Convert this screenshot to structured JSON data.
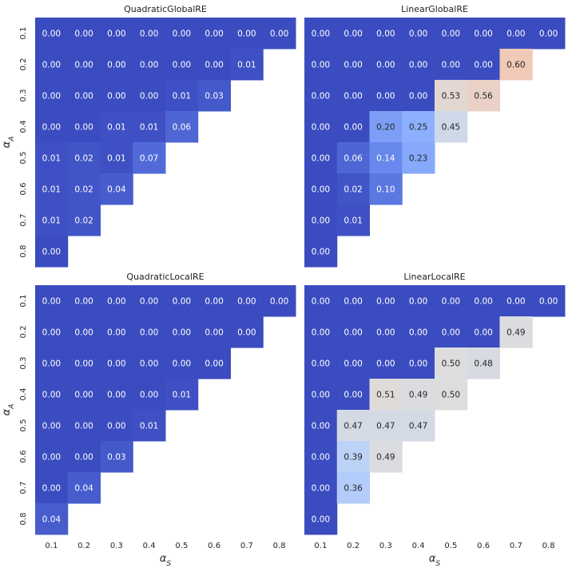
{
  "chart_data": [
    {
      "type": "heatmap",
      "title": "QuadraticGlobalRE",
      "x_categories": [
        "0.1",
        "0.2",
        "0.3",
        "0.4",
        "0.5",
        "0.6",
        "0.7",
        "0.8"
      ],
      "y_categories": [
        "0.1",
        "0.2",
        "0.3",
        "0.4",
        "0.5",
        "0.6",
        "0.7",
        "0.8"
      ],
      "xlabel": "",
      "ylabel": "α_A",
      "colormap": "coolwarm",
      "vmin": 0,
      "vmax": 1,
      "values": [
        [
          0.0,
          0.0,
          0.0,
          0.0,
          0.0,
          0.0,
          0.0,
          0.0
        ],
        [
          0.0,
          0.0,
          0.0,
          0.0,
          0.0,
          0.0,
          0.01,
          null
        ],
        [
          0.0,
          0.0,
          0.0,
          0.0,
          0.01,
          0.03,
          null,
          null
        ],
        [
          0.0,
          0.0,
          0.01,
          0.01,
          0.06,
          null,
          null,
          null
        ],
        [
          0.01,
          0.02,
          0.01,
          0.07,
          null,
          null,
          null,
          null
        ],
        [
          0.01,
          0.02,
          0.04,
          null,
          null,
          null,
          null,
          null
        ],
        [
          0.01,
          0.02,
          null,
          null,
          null,
          null,
          null,
          null
        ],
        [
          0.0,
          null,
          null,
          null,
          null,
          null,
          null,
          null
        ]
      ]
    },
    {
      "type": "heatmap",
      "title": "LinearGlobalRE",
      "x_categories": [
        "0.1",
        "0.2",
        "0.3",
        "0.4",
        "0.5",
        "0.6",
        "0.7",
        "0.8"
      ],
      "y_categories": [
        "0.1",
        "0.2",
        "0.3",
        "0.4",
        "0.5",
        "0.6",
        "0.7",
        "0.8"
      ],
      "xlabel": "",
      "ylabel": "",
      "colormap": "coolwarm",
      "vmin": 0,
      "vmax": 1,
      "values": [
        [
          0.0,
          0.0,
          0.0,
          0.0,
          0.0,
          0.0,
          0.0,
          0.0
        ],
        [
          0.0,
          0.0,
          0.0,
          0.0,
          0.0,
          0.0,
          0.6,
          null
        ],
        [
          0.0,
          0.0,
          0.0,
          0.0,
          0.53,
          0.56,
          null,
          null
        ],
        [
          0.0,
          0.0,
          0.2,
          0.25,
          0.45,
          null,
          null,
          null
        ],
        [
          0.0,
          0.06,
          0.14,
          0.23,
          null,
          null,
          null,
          null
        ],
        [
          0.0,
          0.02,
          0.1,
          null,
          null,
          null,
          null,
          null
        ],
        [
          0.0,
          0.01,
          null,
          null,
          null,
          null,
          null,
          null
        ],
        [
          0.0,
          null,
          null,
          null,
          null,
          null,
          null,
          null
        ]
      ]
    },
    {
      "type": "heatmap",
      "title": "QuadraticLocalRE",
      "x_categories": [
        "0.1",
        "0.2",
        "0.3",
        "0.4",
        "0.5",
        "0.6",
        "0.7",
        "0.8"
      ],
      "y_categories": [
        "0.1",
        "0.2",
        "0.3",
        "0.4",
        "0.5",
        "0.6",
        "0.7",
        "0.8"
      ],
      "xlabel": "α_S",
      "ylabel": "α_A",
      "colormap": "coolwarm",
      "vmin": 0,
      "vmax": 1,
      "values": [
        [
          0.0,
          0.0,
          0.0,
          0.0,
          0.0,
          0.0,
          0.0,
          0.0
        ],
        [
          0.0,
          0.0,
          0.0,
          0.0,
          0.0,
          0.0,
          0.0,
          null
        ],
        [
          0.0,
          0.0,
          0.0,
          0.0,
          0.0,
          0.0,
          null,
          null
        ],
        [
          0.0,
          0.0,
          0.0,
          0.0,
          0.01,
          null,
          null,
          null
        ],
        [
          0.0,
          0.0,
          0.0,
          0.01,
          null,
          null,
          null,
          null
        ],
        [
          0.0,
          0.0,
          0.03,
          null,
          null,
          null,
          null,
          null
        ],
        [
          0.0,
          0.04,
          null,
          null,
          null,
          null,
          null,
          null
        ],
        [
          0.04,
          null,
          null,
          null,
          null,
          null,
          null,
          null
        ]
      ]
    },
    {
      "type": "heatmap",
      "title": "LinearLocalRE",
      "x_categories": [
        "0.1",
        "0.2",
        "0.3",
        "0.4",
        "0.5",
        "0.6",
        "0.7",
        "0.8"
      ],
      "y_categories": [
        "0.1",
        "0.2",
        "0.3",
        "0.4",
        "0.5",
        "0.6",
        "0.7",
        "0.8"
      ],
      "xlabel": "α_S",
      "ylabel": "",
      "colormap": "coolwarm",
      "vmin": 0,
      "vmax": 1,
      "values": [
        [
          0.0,
          0.0,
          0.0,
          0.0,
          0.0,
          0.0,
          0.0,
          0.0
        ],
        [
          0.0,
          0.0,
          0.0,
          0.0,
          0.0,
          0.0,
          0.49,
          null
        ],
        [
          0.0,
          0.0,
          0.0,
          0.0,
          0.5,
          0.48,
          null,
          null
        ],
        [
          0.0,
          0.0,
          0.51,
          0.49,
          0.5,
          null,
          null,
          null
        ],
        [
          0.0,
          0.47,
          0.47,
          0.47,
          null,
          null,
          null,
          null
        ],
        [
          0.0,
          0.39,
          0.49,
          null,
          null,
          null,
          null,
          null
        ],
        [
          0.0,
          0.36,
          null,
          null,
          null,
          null,
          null,
          null
        ],
        [
          0.0,
          null,
          null,
          null,
          null,
          null,
          null,
          null
        ]
      ]
    }
  ]
}
